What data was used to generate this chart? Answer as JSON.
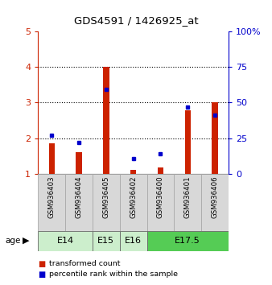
{
  "title": "GDS4591 / 1426925_at",
  "samples": [
    "GSM936403",
    "GSM936404",
    "GSM936405",
    "GSM936402",
    "GSM936400",
    "GSM936401",
    "GSM936406"
  ],
  "red_values": [
    1.85,
    1.6,
    4.0,
    1.12,
    1.18,
    2.78,
    3.0
  ],
  "blue_values": [
    2.08,
    1.88,
    3.38,
    1.42,
    1.57,
    2.88,
    2.65
  ],
  "age_groups": [
    {
      "label": "E14",
      "start": 0,
      "end": 2,
      "color": "#cceecc"
    },
    {
      "label": "E15",
      "start": 2,
      "end": 3,
      "color": "#cceecc"
    },
    {
      "label": "E16",
      "start": 3,
      "end": 4,
      "color": "#cceecc"
    },
    {
      "label": "E17.5",
      "start": 4,
      "end": 7,
      "color": "#55cc55"
    }
  ],
  "ylim_left": [
    1,
    5
  ],
  "ylim_right": [
    0,
    100
  ],
  "yticks_left": [
    1,
    2,
    3,
    4,
    5
  ],
  "yticks_right": [
    0,
    25,
    50,
    75,
    100
  ],
  "ytick_labels_right": [
    "0",
    "25",
    "50",
    "75",
    "100%"
  ],
  "bar_width": 0.22,
  "red_color": "#cc2200",
  "blue_color": "#0000cc",
  "bar_area_color": "#d8d8d8"
}
